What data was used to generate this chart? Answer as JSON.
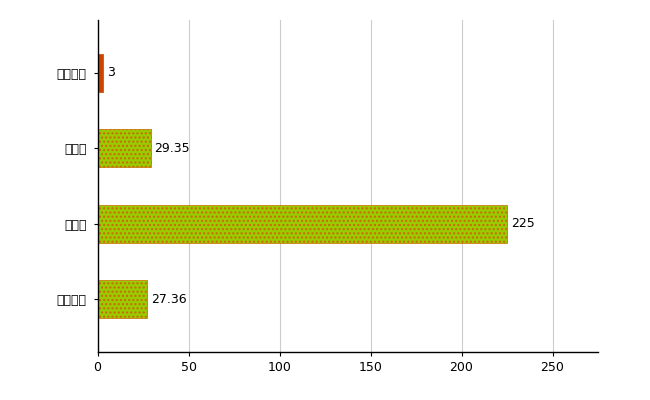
{
  "categories": [
    "宇多津町",
    "県平均",
    "県最大",
    "全国平均"
  ],
  "values": [
    3,
    29.35,
    225,
    27.36
  ],
  "bar_colors": [
    "#cc4400",
    "#99cc00",
    "#99cc00",
    "#99cc00"
  ],
  "hatch_bars": [
    false,
    true,
    true,
    true
  ],
  "hatch_edgecolor": "#cc6600",
  "value_labels": [
    "3",
    "29.35",
    "225",
    "27.36"
  ],
  "xlim": [
    0,
    275
  ],
  "xticks": [
    0,
    50,
    100,
    150,
    200,
    250
  ],
  "grid_color": "#cccccc",
  "background_color": "#ffffff",
  "bar_height": 0.5,
  "label_fontsize": 9,
  "tick_fontsize": 9,
  "value_label_fontsize": 9
}
